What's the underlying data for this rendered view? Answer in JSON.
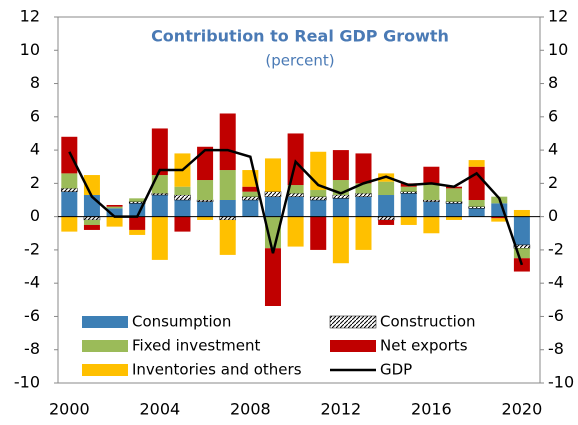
{
  "chart_data": {
    "type": "bar",
    "title": "Contribution to Real GDP Growth",
    "subtitle": "(percent)",
    "x": [
      2000,
      2001,
      2002,
      2003,
      2004,
      2005,
      2006,
      2007,
      2008,
      2009,
      2010,
      2011,
      2012,
      2013,
      2014,
      2015,
      2016,
      2017,
      2018,
      2019,
      2020
    ],
    "xlim": [
      1999.5,
      2020.8
    ],
    "xticks": [
      2000,
      2004,
      2008,
      2012,
      2016,
      2020
    ],
    "ylim": [
      -10,
      12
    ],
    "yticks": [
      -10,
      -8,
      -6,
      -4,
      -2,
      0,
      2,
      4,
      6,
      8,
      10,
      12
    ],
    "series": [
      {
        "name": "Consumption",
        "color": "#3d7fb5",
        "values": [
          1.5,
          1.3,
          0.5,
          0.8,
          1.3,
          1.0,
          0.9,
          1.0,
          1.0,
          1.2,
          1.2,
          1.0,
          1.1,
          1.2,
          1.3,
          1.4,
          0.9,
          0.8,
          0.5,
          0.8,
          -1.7
        ]
      },
      {
        "name": "Construction",
        "color": "#000000",
        "hatched": true,
        "values": [
          0.2,
          -0.2,
          0.0,
          0.1,
          0.1,
          0.3,
          0.1,
          -0.2,
          0.2,
          0.3,
          0.2,
          0.2,
          0.2,
          0.2,
          -0.2,
          0.1,
          0.1,
          0.1,
          0.1,
          0.0,
          -0.2
        ]
      },
      {
        "name": "Fixed investment",
        "color": "#9bbb59",
        "values": [
          0.9,
          -0.3,
          0.1,
          0.2,
          1.1,
          0.5,
          1.2,
          1.8,
          0.3,
          -1.9,
          0.5,
          0.4,
          0.9,
          0.6,
          0.8,
          0.3,
          1.0,
          0.8,
          0.4,
          0.4,
          -0.6
        ]
      },
      {
        "name": "Net exports",
        "color": "#c00000",
        "values": [
          2.2,
          -0.3,
          0.1,
          -0.8,
          2.8,
          -0.9,
          2.0,
          3.4,
          0.3,
          -3.7,
          3.1,
          -2.0,
          1.8,
          1.8,
          -0.3,
          0.2,
          1.0,
          0.1,
          2.0,
          -0.1,
          -0.8
        ]
      },
      {
        "name": "Inventories and others",
        "color": "#ffc000",
        "values": [
          -0.9,
          1.2,
          -0.6,
          -0.3,
          -2.6,
          2.0,
          -0.2,
          -2.1,
          1.0,
          2.0,
          -1.8,
          2.3,
          -2.8,
          -2.0,
          0.5,
          -0.5,
          -1.0,
          -0.2,
          0.4,
          -0.2,
          0.4
        ]
      },
      {
        "name": "GDP",
        "color": "#000000",
        "line": true,
        "values": [
          3.9,
          1.2,
          0.0,
          0.0,
          2.8,
          2.8,
          4.0,
          4.0,
          3.6,
          -2.2,
          3.3,
          1.9,
          1.4,
          2.0,
          2.4,
          1.9,
          2.0,
          1.8,
          2.6,
          1.1,
          -2.9
        ]
      }
    ]
  }
}
